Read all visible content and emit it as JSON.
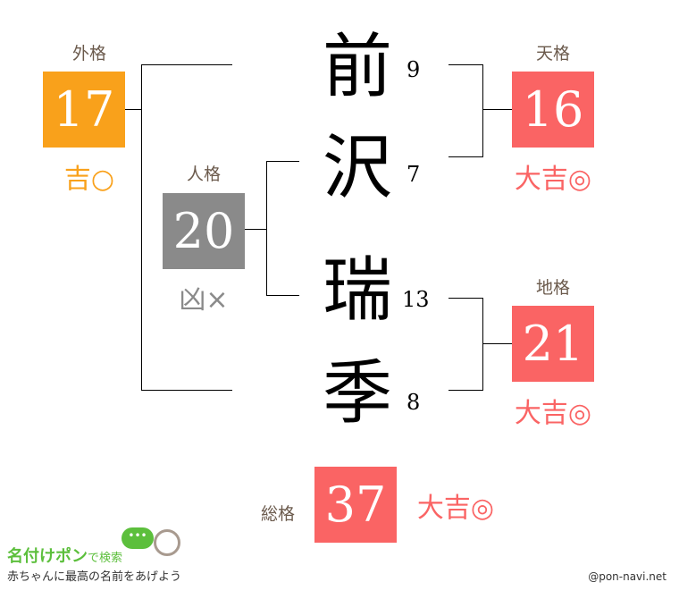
{
  "name_chars": [
    {
      "char": "前",
      "strokes": "9"
    },
    {
      "char": "沢",
      "strokes": "7"
    },
    {
      "char": "瑞",
      "strokes": "13"
    },
    {
      "char": "季",
      "strokes": "8"
    }
  ],
  "gaikaku": {
    "label": "外格",
    "value": "17",
    "fortune": "吉○",
    "color": "#F9A11B"
  },
  "jinkaku": {
    "label": "人格",
    "value": "20",
    "fortune": "凶×",
    "color": "#8A8A8A"
  },
  "tenkaku": {
    "label": "天格",
    "value": "16",
    "fortune": "大吉◎",
    "color": "#FA6464"
  },
  "chikaku": {
    "label": "地格",
    "value": "21",
    "fortune": "大吉◎",
    "color": "#FA6464"
  },
  "soukaku": {
    "label": "総格",
    "value": "37",
    "fortune": "大吉◎",
    "color": "#FA6464"
  },
  "footer": {
    "logo_main": "名付けポン",
    "logo_sub": "で検索",
    "tagline": "赤ちゃんに最高の名前をあげよう",
    "copyright": "@pon-navi.net"
  }
}
